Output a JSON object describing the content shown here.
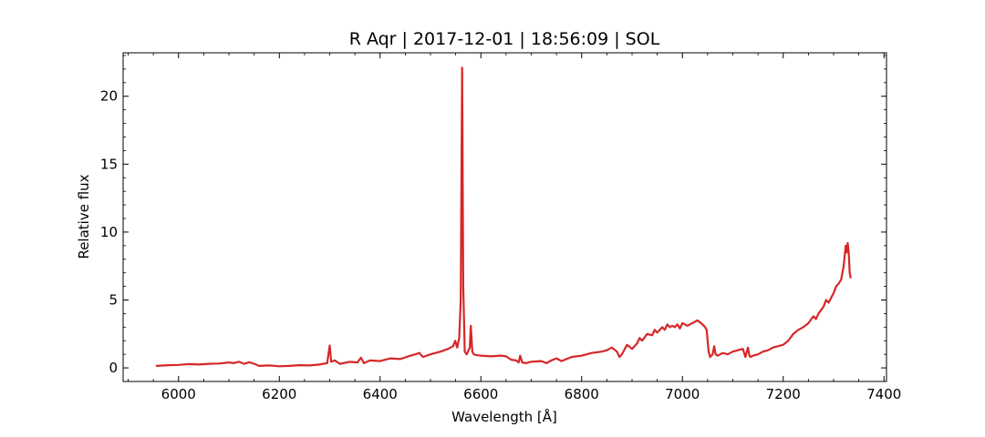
{
  "chart_data": {
    "type": "line",
    "title": "R Aqr | 2017-12-01 | 18:56:09 | SOL",
    "xlabel": "Wavelength [Å]",
    "ylabel": "Relative flux",
    "xlim": [
      5890,
      7405
    ],
    "ylim": [
      -1.0,
      23.2
    ],
    "xticks": [
      6000,
      6200,
      6400,
      6600,
      6800,
      7000,
      7200,
      7400
    ],
    "yticks": [
      0,
      5,
      10,
      15,
      20
    ],
    "grid": false,
    "legend": "none",
    "series": [
      {
        "color": "#d62728",
        "x": [
          5955,
          5980,
          6000,
          6020,
          6040,
          6060,
          6080,
          6100,
          6110,
          6120,
          6130,
          6140,
          6150,
          6160,
          6180,
          6200,
          6220,
          6240,
          6260,
          6280,
          6295,
          6300,
          6303,
          6310,
          6320,
          6340,
          6355,
          6362,
          6368,
          6380,
          6400,
          6420,
          6440,
          6460,
          6470,
          6478,
          6485,
          6500,
          6520,
          6535,
          6545,
          6549,
          6553,
          6557,
          6560,
          6562.8,
          6565,
          6568,
          6572,
          6578,
          6580,
          6583,
          6586,
          6590,
          6600,
          6620,
          6640,
          6650,
          6660,
          6670,
          6675,
          6678,
          6682,
          6690,
          6700,
          6720,
          6730,
          6740,
          6750,
          6760,
          6780,
          6800,
          6820,
          6840,
          6850,
          6860,
          6870,
          6875,
          6880,
          6890,
          6900,
          6910,
          6915,
          6920,
          6930,
          6940,
          6945,
          6950,
          6960,
          6965,
          6970,
          6975,
          6980,
          6985,
          6990,
          6995,
          7000,
          7010,
          7020,
          7030,
          7040,
          7045,
          7048,
          7052,
          7055,
          7060,
          7063,
          7066,
          7070,
          7080,
          7090,
          7100,
          7110,
          7120,
          7125,
          7130,
          7133,
          7135,
          7140,
          7150,
          7160,
          7170,
          7180,
          7190,
          7200,
          7210,
          7220,
          7230,
          7240,
          7250,
          7260,
          7265,
          7270,
          7280,
          7285,
          7290,
          7300,
          7305,
          7310,
          7315,
          7320,
          7324,
          7326,
          7328,
          7330,
          7332,
          7334
        ],
        "values": [
          0.15,
          0.2,
          0.22,
          0.28,
          0.25,
          0.3,
          0.32,
          0.4,
          0.35,
          0.45,
          0.3,
          0.42,
          0.3,
          0.15,
          0.18,
          0.12,
          0.15,
          0.2,
          0.18,
          0.25,
          0.35,
          1.65,
          0.45,
          0.55,
          0.3,
          0.45,
          0.4,
          0.75,
          0.35,
          0.55,
          0.5,
          0.7,
          0.65,
          0.9,
          1.0,
          1.1,
          0.8,
          1.0,
          1.2,
          1.4,
          1.6,
          2.0,
          1.5,
          2.2,
          5.0,
          22.1,
          6.0,
          1.2,
          1.0,
          1.5,
          3.1,
          1.2,
          1.0,
          0.95,
          0.9,
          0.85,
          0.9,
          0.85,
          0.6,
          0.55,
          0.4,
          0.9,
          0.4,
          0.35,
          0.45,
          0.5,
          0.35,
          0.55,
          0.7,
          0.5,
          0.8,
          0.9,
          1.1,
          1.2,
          1.3,
          1.5,
          1.2,
          0.8,
          1.0,
          1.7,
          1.4,
          1.8,
          2.2,
          2.0,
          2.5,
          2.4,
          2.8,
          2.6,
          3.0,
          2.8,
          3.2,
          3.0,
          3.1,
          3.0,
          3.2,
          2.9,
          3.3,
          3.1,
          3.3,
          3.5,
          3.2,
          3.0,
          2.8,
          1.2,
          0.8,
          1.0,
          1.6,
          1.0,
          0.9,
          1.1,
          1.0,
          1.2,
          1.3,
          1.4,
          0.8,
          1.5,
          0.9,
          0.8,
          0.9,
          1.0,
          1.2,
          1.3,
          1.5,
          1.6,
          1.7,
          2.0,
          2.5,
          2.8,
          3.0,
          3.3,
          3.8,
          3.6,
          4.0,
          4.5,
          5.0,
          4.8,
          5.5,
          6.0,
          6.2,
          6.5,
          7.5,
          9.0,
          8.5,
          9.2,
          8.5,
          7.0,
          6.6
        ]
      }
    ]
  }
}
